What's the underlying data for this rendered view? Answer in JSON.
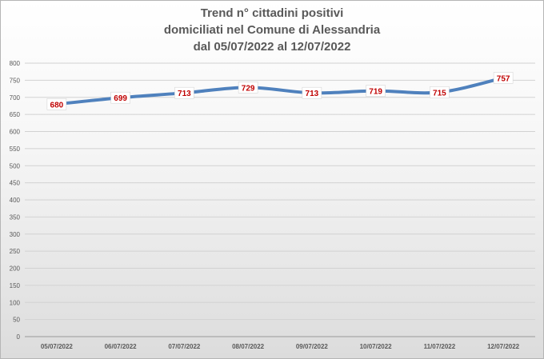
{
  "chart_data": {
    "type": "line",
    "title_lines": [
      "Trend n° cittadini positivi",
      "domiciliati nel Comune di Alessandria",
      "dal 05/07/2022 al 12/07/2022"
    ],
    "categories": [
      "05/07/2022",
      "06/07/2022",
      "07/07/2022",
      "08/07/2022",
      "09/07/2022",
      "10/07/2022",
      "11/07/2022",
      "12/07/2022"
    ],
    "series": [
      {
        "values": [
          680,
          699,
          713,
          729,
          713,
          719,
          715,
          757
        ]
      }
    ],
    "ylim": [
      0,
      800
    ],
    "yticks": [
      0,
      50,
      100,
      150,
      200,
      250,
      300,
      350,
      400,
      450,
      500,
      550,
      600,
      650,
      700,
      750,
      800
    ],
    "grid": true,
    "legend": "none",
    "line_color": "#4f81bd",
    "label_color": "#c00000"
  }
}
